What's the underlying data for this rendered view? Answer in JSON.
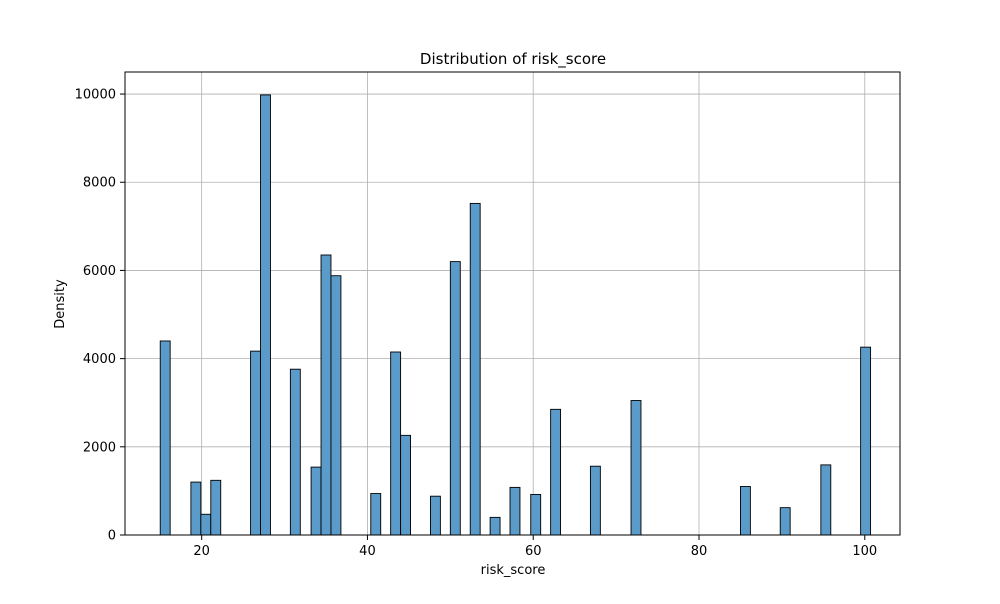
{
  "chart_data": {
    "type": "bar",
    "title": "Distribution of risk_score",
    "xlabel": "risk_score",
    "ylabel": "Density",
    "xlim": [
      10.75,
      104.25
    ],
    "ylim": [
      0,
      10500
    ],
    "xticks": [
      20,
      40,
      60,
      80,
      100
    ],
    "yticks": [
      0,
      2000,
      4000,
      6000,
      8000,
      10000
    ],
    "grid": true,
    "bar_color": "#5b9bc9",
    "bar_edge_color": "#000000",
    "bins": [
      {
        "x_start": 15.0,
        "x_end": 16.2,
        "value": 4400
      },
      {
        "x_start": 18.7,
        "x_end": 19.9,
        "value": 1200
      },
      {
        "x_start": 19.9,
        "x_end": 21.1,
        "value": 470
      },
      {
        "x_start": 21.1,
        "x_end": 22.3,
        "value": 1240
      },
      {
        "x_start": 25.9,
        "x_end": 27.1,
        "value": 4170
      },
      {
        "x_start": 27.1,
        "x_end": 28.3,
        "value": 9980
      },
      {
        "x_start": 30.7,
        "x_end": 31.9,
        "value": 3760
      },
      {
        "x_start": 33.2,
        "x_end": 34.4,
        "value": 1540
      },
      {
        "x_start": 34.4,
        "x_end": 35.6,
        "value": 6350
      },
      {
        "x_start": 35.6,
        "x_end": 36.8,
        "value": 5880
      },
      {
        "x_start": 40.4,
        "x_end": 41.6,
        "value": 940
      },
      {
        "x_start": 42.8,
        "x_end": 44.0,
        "value": 4150
      },
      {
        "x_start": 44.0,
        "x_end": 45.2,
        "value": 2260
      },
      {
        "x_start": 47.6,
        "x_end": 48.8,
        "value": 880
      },
      {
        "x_start": 50.0,
        "x_end": 51.2,
        "value": 6200
      },
      {
        "x_start": 52.4,
        "x_end": 53.6,
        "value": 7520
      },
      {
        "x_start": 54.8,
        "x_end": 56.0,
        "value": 400
      },
      {
        "x_start": 57.2,
        "x_end": 58.4,
        "value": 1080
      },
      {
        "x_start": 59.7,
        "x_end": 60.9,
        "value": 920
      },
      {
        "x_start": 62.1,
        "x_end": 63.3,
        "value": 2850
      },
      {
        "x_start": 66.9,
        "x_end": 68.1,
        "value": 1560
      },
      {
        "x_start": 71.8,
        "x_end": 73.0,
        "value": 3050
      },
      {
        "x_start": 85.0,
        "x_end": 86.2,
        "value": 1100
      },
      {
        "x_start": 89.8,
        "x_end": 91.0,
        "value": 620
      },
      {
        "x_start": 94.7,
        "x_end": 95.9,
        "value": 1590
      },
      {
        "x_start": 99.5,
        "x_end": 100.7,
        "value": 4260
      }
    ]
  }
}
